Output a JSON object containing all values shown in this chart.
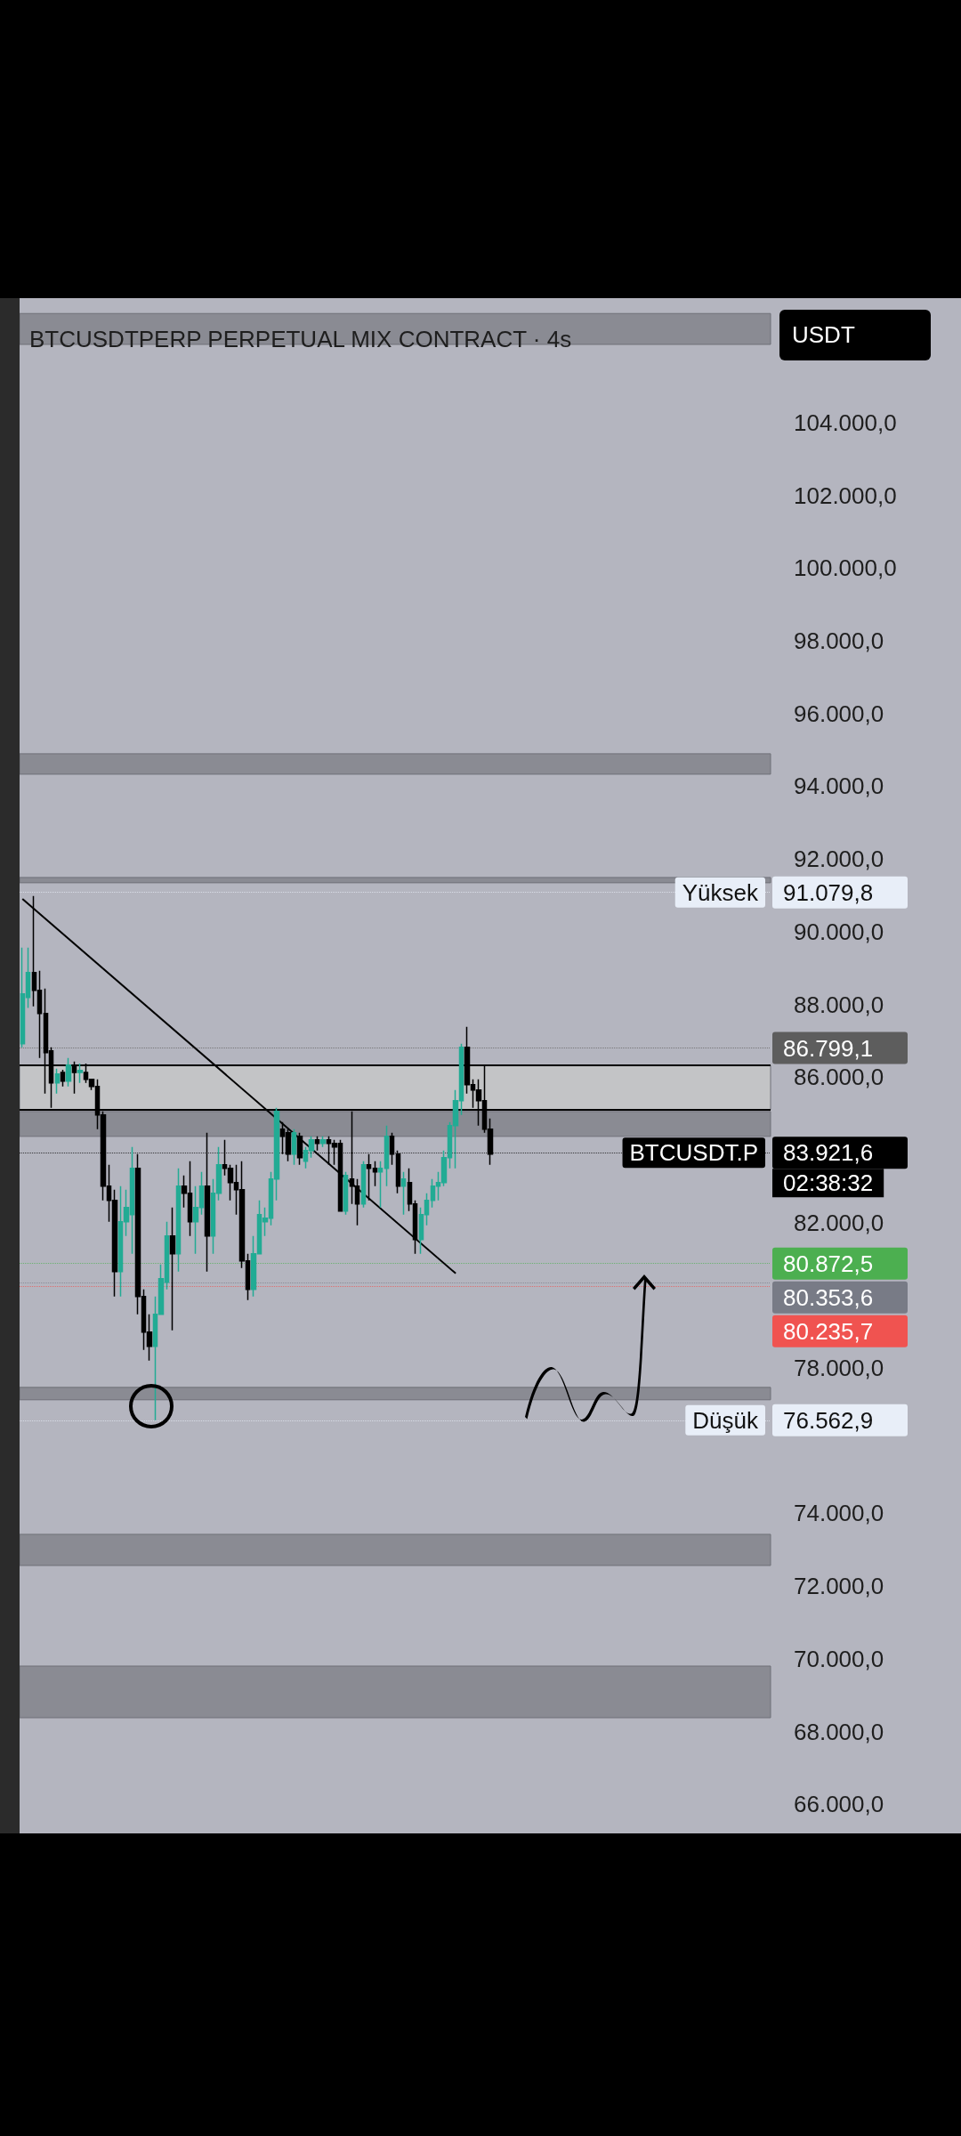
{
  "chart_data": {
    "type": "candlestick",
    "title": "BTCUSDTPERP PERPETUAL MIX CONTRACT · 4s",
    "ylabel": "USDT",
    "categories": [
      null,
      null,
      null,
      null,
      null,
      null,
      null,
      null,
      null,
      null,
      null,
      null,
      null,
      null,
      null,
      null,
      null,
      null,
      null,
      null,
      null,
      null,
      null,
      null,
      null,
      null,
      null,
      null,
      null,
      null,
      null,
      null,
      null,
      null,
      null,
      null,
      null,
      null,
      null,
      null,
      null,
      null,
      null,
      null,
      null,
      null,
      null,
      null,
      null,
      null,
      null,
      null,
      null,
      null,
      null,
      null,
      null,
      null,
      null,
      null,
      null,
      null,
      null,
      null,
      null,
      null,
      null,
      null,
      null,
      null,
      null,
      null,
      null,
      null,
      null,
      null,
      null,
      null,
      null,
      null,
      null,
      null,
      null,
      null,
      null,
      null,
      null,
      null,
      null,
      null,
      null,
      null,
      null,
      null,
      null,
      null,
      null,
      null,
      null,
      null,
      null,
      null,
      null,
      null,
      null,
      null,
      null,
      null,
      null,
      null,
      null,
      null,
      null,
      null,
      null,
      null,
      null,
      null,
      null,
      null,
      null,
      null,
      null,
      null,
      null,
      null,
      null,
      null,
      null,
      null
    ],
    "series": [
      {
        "ohlc": [
          [
            86915,
            89558,
            86817,
            88285
          ],
          [
            88187,
            89558,
            87900,
            88873
          ],
          [
            88873,
            90978,
            87943,
            88383
          ],
          [
            88383,
            88922,
            86523,
            87747
          ],
          [
            87747,
            88432,
            85544,
            86670
          ],
          [
            86720,
            86817,
            85152,
            85838
          ],
          [
            85838,
            86230,
            85544,
            86083
          ],
          [
            86130,
            86200,
            85740,
            85887
          ],
          [
            85887,
            86523,
            85740,
            86328
          ],
          [
            86328,
            86425,
            85544,
            86130
          ],
          [
            86130,
            86375,
            85838,
            86180
          ],
          [
            86130,
            86375,
            85838,
            85936
          ],
          [
            85936,
            85936,
            85642,
            85740
          ],
          [
            85740,
            85936,
            84565,
            84956
          ],
          [
            84956,
            85054,
            82607,
            82999
          ],
          [
            82999,
            83586,
            82021,
            82607
          ],
          [
            82607,
            82900,
            79964,
            80649
          ],
          [
            80649,
            82999,
            79964,
            82021
          ],
          [
            82021,
            82900,
            81630,
            82412
          ],
          [
            82216,
            84075,
            81140,
            83488
          ],
          [
            83488,
            83880,
            79475,
            79964
          ],
          [
            79964,
            80160,
            78496,
            78985
          ],
          [
            78985,
            79475,
            78202,
            78593
          ],
          [
            78593,
            79964,
            76563,
            79475
          ],
          [
            79475,
            80845,
            79475,
            80454
          ],
          [
            80356,
            82021,
            80160,
            81630
          ],
          [
            81630,
            82412,
            79034,
            81140
          ],
          [
            81140,
            83488,
            80649,
            82999
          ],
          [
            82999,
            83293,
            82412,
            82803
          ],
          [
            82803,
            83684,
            81630,
            82021
          ],
          [
            82021,
            82999,
            81140,
            82412
          ],
          [
            82412,
            83390,
            82216,
            82999
          ],
          [
            82999,
            84467,
            80649,
            81630
          ],
          [
            81630,
            83195,
            81140,
            82803
          ],
          [
            82803,
            84075,
            82607,
            83586
          ],
          [
            83586,
            84271,
            83293,
            83488
          ],
          [
            83488,
            83586,
            82607,
            83097
          ],
          [
            83097,
            83586,
            82216,
            82900
          ],
          [
            82900,
            83684,
            80747,
            80943
          ],
          [
            80943,
            81140,
            79866,
            80160
          ],
          [
            80160,
            81630,
            79964,
            81140
          ],
          [
            81140,
            82607,
            81140,
            82216
          ],
          [
            82021,
            82412,
            81630,
            82118
          ],
          [
            82118,
            83390,
            81923,
            83195
          ],
          [
            83195,
            85152,
            82607,
            85054
          ],
          [
            84565,
            84760,
            83880,
            84369
          ],
          [
            84467,
            84565,
            83684,
            83880
          ],
          [
            83880,
            84565,
            83586,
            84467
          ],
          [
            84369,
            84467,
            83586,
            83782
          ],
          [
            83684,
            84075,
            83488,
            83978
          ],
          [
            83978,
            84369,
            83782,
            84271
          ],
          [
            84271,
            84369,
            83978,
            84173
          ],
          [
            84173,
            84369,
            84075,
            84271
          ],
          [
            84271,
            84369,
            83586,
            84173
          ],
          [
            84173,
            84271,
            83586,
            84075
          ],
          [
            84173,
            84271,
            82314,
            82314
          ],
          [
            82314,
            83390,
            82216,
            83293
          ],
          [
            83195,
            85054,
            82509,
            82999
          ],
          [
            82999,
            83195,
            81923,
            82509
          ],
          [
            82509,
            83684,
            82412,
            83586
          ],
          [
            83586,
            83880,
            82607,
            83488
          ],
          [
            83488,
            83684,
            83000,
            83390
          ],
          [
            83390,
            83684,
            82412,
            83488
          ],
          [
            83488,
            84663,
            82999,
            84369
          ],
          [
            84369,
            84467,
            83586,
            83880
          ],
          [
            83880,
            83978,
            82803,
            82999
          ],
          [
            82999,
            83390,
            82216,
            83195
          ],
          [
            83097,
            83488,
            82314,
            82509
          ],
          [
            82509,
            82607,
            81140,
            81532
          ],
          [
            81532,
            82412,
            81140,
            82216
          ],
          [
            82216,
            82803,
            81923,
            82607
          ],
          [
            82607,
            83195,
            82412,
            82999
          ],
          [
            82999,
            83390,
            82607,
            83097
          ],
          [
            83097,
            83978,
            82999,
            83782
          ],
          [
            83782,
            84760,
            83488,
            84663
          ],
          [
            84663,
            85642,
            83488,
            85348
          ],
          [
            85348,
            86915,
            84956,
            86817
          ],
          [
            86817,
            87382,
            85544,
            85789
          ],
          [
            85789,
            85936,
            85152,
            85642
          ],
          [
            85642,
            85936,
            84663,
            85348
          ],
          [
            85348,
            86328,
            84467,
            84565
          ],
          [
            84565,
            84858,
            83586,
            83880
          ],
          null,
          null,
          null,
          null,
          null,
          null,
          null,
          null,
          null,
          null,
          null,
          null,
          null,
          null,
          null,
          null,
          null,
          null,
          null,
          null,
          null,
          null,
          null,
          null,
          null,
          null,
          null,
          null,
          null,
          null,
          null,
          null,
          null,
          null,
          null,
          null,
          null,
          null,
          null,
          null,
          null,
          null,
          null,
          null,
          null,
          null,
          null,
          null
        ]
      },
      {
        "type": "line",
        "color": "#000000",
        "values": [
          90900,
          null,
          null,
          null,
          null,
          null,
          null,
          null,
          null,
          null,
          null,
          null,
          null,
          null,
          null,
          null,
          null,
          null,
          null,
          null,
          null,
          null,
          null,
          null,
          null,
          null,
          null,
          null,
          null,
          null,
          null,
          null,
          null,
          null,
          null,
          null,
          null,
          null,
          null,
          null,
          null,
          null,
          null,
          null,
          null,
          null,
          null,
          null,
          null,
          null,
          null,
          null,
          null,
          null,
          null,
          null,
          null,
          null,
          null,
          null,
          null,
          null,
          null,
          null,
          null,
          null,
          null,
          null,
          null,
          null,
          null,
          null,
          null,
          null,
          null,
          80600,
          null,
          null,
          null,
          null,
          null,
          null,
          null,
          null,
          null,
          null,
          null,
          null,
          null,
          null,
          null,
          null,
          null,
          null,
          null,
          null,
          null,
          null,
          null,
          null,
          null,
          null,
          null,
          null,
          null,
          null,
          null,
          null,
          null,
          null,
          null,
          null,
          null,
          null,
          null,
          null,
          null,
          null,
          null,
          null,
          null,
          null,
          null,
          null,
          null,
          null,
          null,
          null,
          null,
          null
        ]
      }
    ],
    "ylim": [
      65200,
      107300
    ],
    "yticks": [
      {
        "value": 66000,
        "label": "66.000,0"
      },
      {
        "value": 68000,
        "label": "68.000,0"
      },
      {
        "value": 70000,
        "label": "70.000,0"
      },
      {
        "value": 72000,
        "label": "72.000,0"
      },
      {
        "value": 74000,
        "label": "74.000,0"
      },
      {
        "value": 78000,
        "label": "78.000,0"
      },
      {
        "value": 82000,
        "label": "82.000,0"
      },
      {
        "value": 86000,
        "label": "86.000,0"
      },
      {
        "value": 88000,
        "label": "88.000,0"
      },
      {
        "value": 90000,
        "label": "90.000,0"
      },
      {
        "value": 92000,
        "label": "92.000,0"
      },
      {
        "value": 94000,
        "label": "94.000,0"
      },
      {
        "value": 96000,
        "label": "96.000,0"
      },
      {
        "value": 98000,
        "label": "98.000,0"
      },
      {
        "value": 100000,
        "label": "100.000,0"
      },
      {
        "value": 102000,
        "label": "102.000,0"
      },
      {
        "value": 104000,
        "label": "104.000,0"
      }
    ],
    "bands": [
      {
        "axis": "y",
        "from": 106150,
        "to": 107000,
        "color": "#8a8b93"
      },
      {
        "axis": "y",
        "from": 94330,
        "to": 94893,
        "color": "#8a8b93"
      },
      {
        "axis": "y",
        "from": 91344,
        "to": 91490,
        "color": "#8a8b93"
      },
      {
        "axis": "y",
        "from": 85103,
        "to": 86327,
        "color": "#c3c4c6"
      },
      {
        "axis": "y",
        "from": 84369,
        "to": 85054,
        "color": "#8a8b93"
      },
      {
        "axis": "y",
        "from": 77125,
        "to": 77467,
        "color": "#8a8b93"
      },
      {
        "axis": "y",
        "from": 72568,
        "to": 73425,
        "color": "#8a8b93"
      },
      {
        "axis": "y",
        "from": 68381,
        "to": 69802,
        "color": "#8a8b93"
      }
    ],
    "ref_lines": [
      {
        "axis": "y",
        "value": 86327,
        "color": "#000000",
        "line_style": "solid"
      },
      {
        "axis": "y",
        "value": 85103,
        "color": "#000000",
        "line_style": "solid"
      },
      {
        "axis": "y",
        "value": 91079.8,
        "label": "91.079,8",
        "color": "#e8eef8",
        "line_style": "dotted"
      },
      {
        "axis": "y",
        "value": 86799.1,
        "label": "86.799,1",
        "color": "#5d5d5d",
        "line_style": "dotted"
      },
      {
        "axis": "y",
        "value": 83921.6,
        "label": "83.921,6",
        "color": "#000000",
        "line_style": "dotted"
      },
      {
        "axis": "y",
        "value": 80872.5,
        "label": "80.872,5",
        "color": "#4caf50",
        "line_style": "dotted"
      },
      {
        "axis": "y",
        "value": 80353.6,
        "label": "80.353,6",
        "color": "#787b86",
        "line_style": "dotted"
      },
      {
        "axis": "y",
        "value": 80235.7,
        "label": "80.235,7",
        "color": "#f05350",
        "line_style": "dotted"
      },
      {
        "axis": "y",
        "value": 76562.9,
        "label": "76.562,9",
        "color": "#e8eef8",
        "line_style": "dotted"
      }
    ],
    "annotations": [
      {
        "text": "Yüksek",
        "y": 91079.8
      },
      {
        "text": "BTCUSDT.P",
        "y": 83921.6
      },
      "02:38:32",
      {
        "text": "Düşük",
        "y": 76562.9
      }
    ],
    "grid": false,
    "tick_labels": "y"
  }
}
